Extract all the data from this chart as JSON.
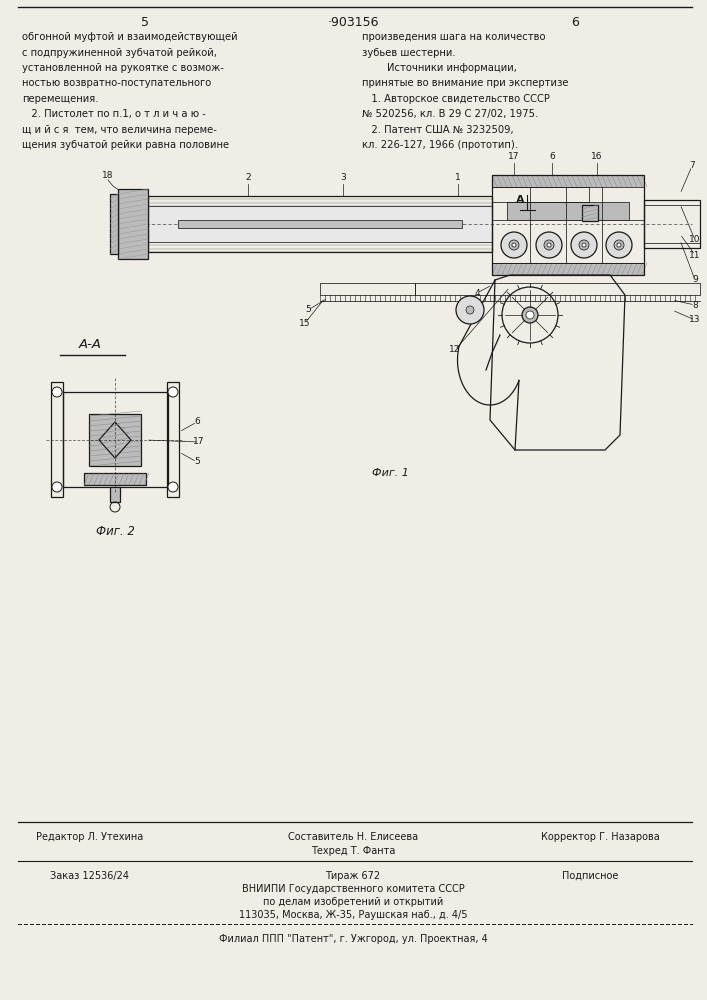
{
  "page_left": "5",
  "patent_num": "·903156",
  "page_right": "6",
  "bg": "#f0ede6",
  "ink": "#1a1a1a",
  "left_col": [
    "обгонной муфтой и взаимодействующей",
    "с подпружиненной зубчатой рейкой,",
    "установленной на рукоятке с возмож-",
    "ностью возвратно-поступательного",
    "перемещения.",
    "   2. Пистолет по п.1, о т л и ч а ю -",
    "щ и й с я  тем, что величина переме-",
    "щения зубчатой рейки равна половине"
  ],
  "right_col": [
    "произведения шага на количество",
    "зубьев шестерни.",
    "        Источники информации,",
    "принятые во внимание при экспертизе",
    "   1. Авторское свидетельство СССР",
    "№ 520256, кл. В 29 С 27/02, 1975.",
    "   2. Патент США № 3232509,",
    "кл. 226-127, 1966 (прототип)."
  ],
  "fig1_caption": "Фиг. 1",
  "fig2_caption": "Фиг. 2",
  "aa_label": "А-А",
  "ed_label": "Редактор Л. Утехина",
  "comp_label": "Составитель Н. Елисеева",
  "corr_label": "Корректор Г. Назарова",
  "tech_label": "Техред Т. Фанта",
  "order_label": "Заказ 12536/24",
  "tirazh_label": "Тираж 672",
  "podp_label": "Подписное",
  "vniip_label": "ВНИИПИ Государственного комитета СССР",
  "dela_label": "по делам изобретений и открытий",
  "addr_label": "113035, Москва, Ж-35, Раушская наб., д. 4/5",
  "filial_label": "Филиал ППП \"Патент\", г. Ужгород, ул. Проектная, 4"
}
